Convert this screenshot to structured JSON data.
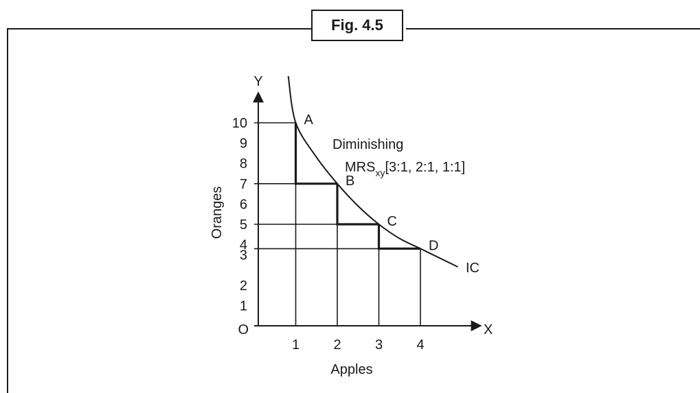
{
  "figure": {
    "label": "Fig. 4.5"
  },
  "chart_data": {
    "type": "line",
    "title": "",
    "xlabel": "Apples",
    "ylabel": "Oranges",
    "x_axis_letter": "X",
    "y_axis_letter": "Y",
    "origin_label": "O",
    "xlim": [
      0,
      5
    ],
    "ylim": [
      0,
      11
    ],
    "x_ticks": [
      "1",
      "2",
      "3",
      "4"
    ],
    "y_ticks": [
      "1",
      "2",
      "3",
      "4",
      "5",
      "6",
      "7",
      "8",
      "9",
      "10"
    ],
    "points": [
      {
        "label": "A",
        "x": 1,
        "y": 10
      },
      {
        "label": "B",
        "x": 2,
        "y": 7
      },
      {
        "label": "C",
        "x": 3,
        "y": 5
      },
      {
        "label": "D",
        "x": 4,
        "y": 3.8
      }
    ],
    "curve": [
      [
        0.82,
        12.3
      ],
      [
        1,
        10
      ],
      [
        1.5,
        8.3
      ],
      [
        2,
        7
      ],
      [
        2.5,
        5.9
      ],
      [
        3,
        5
      ],
      [
        3.5,
        4.3
      ],
      [
        4,
        3.8
      ],
      [
        4.5,
        3.3
      ],
      [
        4.9,
        2.9
      ]
    ],
    "curve_label": "IC",
    "annotation": {
      "line1": "Diminishing",
      "line2_main": "MRS",
      "line2_sub": "xy",
      "line2_rest": "[3:1, 2:1, 1:1]"
    },
    "grid": false
  }
}
